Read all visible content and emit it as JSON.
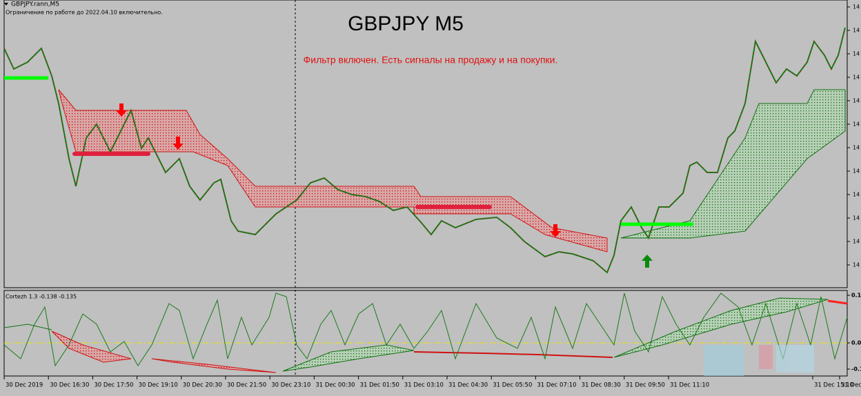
{
  "header": {
    "symbol": "GBPJPY.rann,M5",
    "notice": "Ограничение по работе до 2022.04.10 включительно."
  },
  "title": "GBPJPY M5",
  "subtitle": "Фильтр включен. Есть сигналы на продажу и на покупки.",
  "indicator_label": "Cortezh 1.3 -0.138 -0.135",
  "price_axis": [
    "14",
    "14",
    "14",
    "14",
    "14",
    "14",
    "14",
    "14",
    "14",
    "14",
    "14",
    "14"
  ],
  "oscillator_axis": [
    "0.1",
    "0.0",
    "-0.1"
  ],
  "time_axis": [
    "30 Dec 2019",
    "30 Dec 16:30",
    "30 Dec 17:50",
    "30 Dec 19:10",
    "30 Dec 20:30",
    "30 Dec 21:50",
    "30 Dec 23:10",
    "31 Dec 00:30",
    "31 Dec 01:50",
    "31 Dec 03:10",
    "31 Dec 04:30",
    "31 Dec 05:50",
    "31 Dec 07:10",
    "31 Dec 08:30",
    "31 Dec 09:50",
    "31 Dec 11:10",
    "31 Dec 15:10",
    "31 Dec"
  ]
}
